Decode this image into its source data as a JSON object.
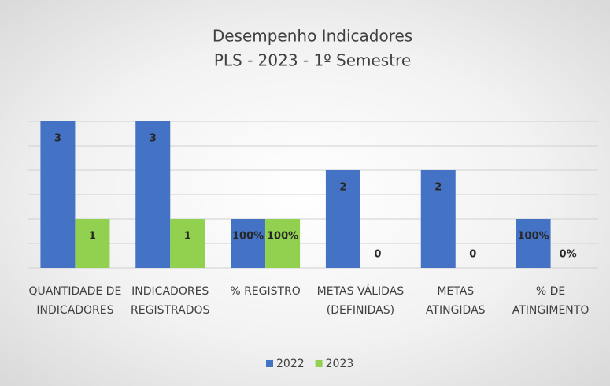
{
  "chart_data": {
    "type": "bar",
    "title": "Desempenho Indicadores",
    "subtitle": "PLS - 2023 - 1º Semestre",
    "categories": [
      "QUANTIDADE DE INDICADORES",
      "INDICADORES REGISTRADOS",
      "% REGISTRO",
      "METAS VÁLIDAS (DEFINIDAS)",
      "METAS ATINGIDAS",
      "% DE ATINGIMENTO"
    ],
    "series": [
      {
        "name": "2022",
        "color": "#4472c4",
        "values": [
          3,
          3,
          1,
          2,
          2,
          1
        ],
        "value_labels": [
          "3",
          "3",
          "100%",
          "2",
          "2",
          "100%"
        ]
      },
      {
        "name": "2023",
        "color": "#92d050",
        "values": [
          1,
          1,
          1,
          0,
          0,
          0
        ],
        "value_labels": [
          "1",
          "1",
          "100%",
          "0",
          "0",
          "0%"
        ]
      }
    ],
    "ylim": [
      0,
      3
    ],
    "yticks": [
      0,
      0.5,
      1,
      1.5,
      2,
      2.5,
      3
    ],
    "grid": true,
    "legend": "bottom"
  }
}
